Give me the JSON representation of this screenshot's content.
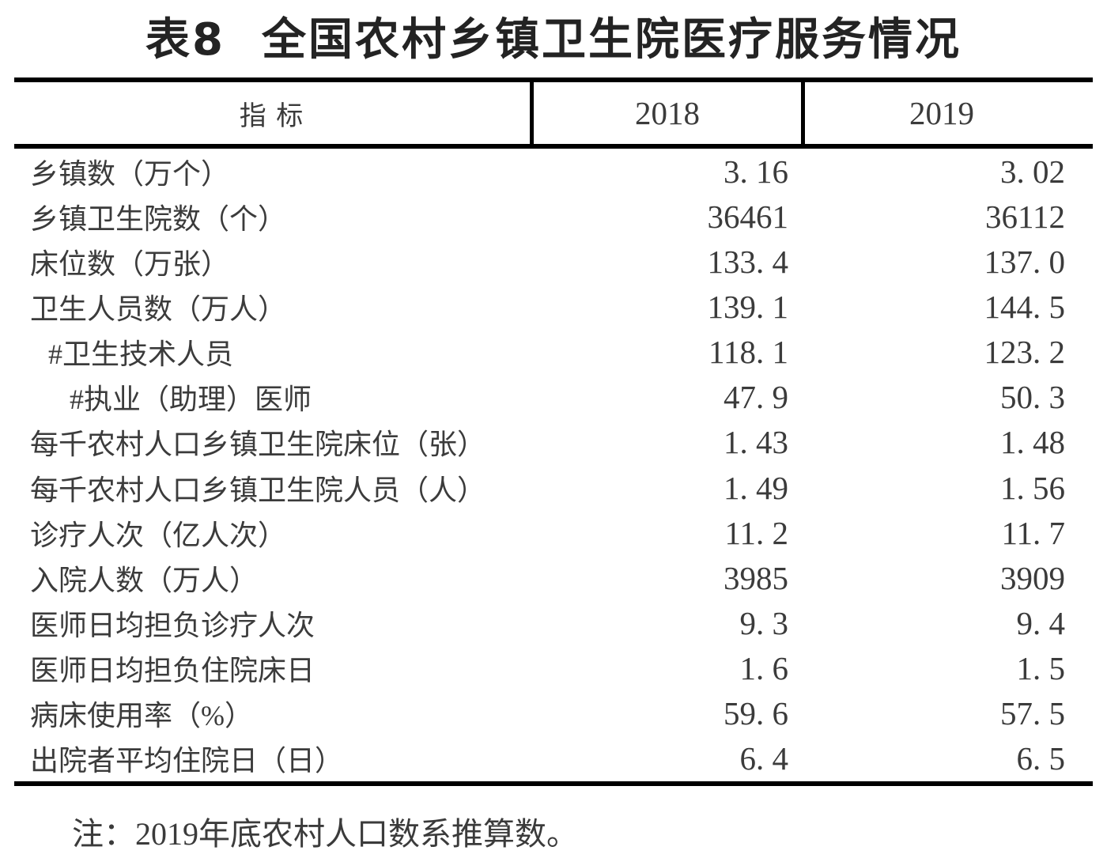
{
  "title": {
    "label": "表8",
    "text": "全国农村乡镇卫生院医疗服务情况"
  },
  "table": {
    "header": {
      "indicator": "指  标",
      "col2018": "2018",
      "col2019": "2019"
    },
    "rows": [
      {
        "label": "乡镇数（万个）",
        "y2018": "3. 16",
        "y2019": "3. 02"
      },
      {
        "label": "乡镇卫生院数（个）",
        "y2018": "36461",
        "y2019": "36112"
      },
      {
        "label": "床位数（万张）",
        "y2018": "133. 4",
        "y2019": "137. 0"
      },
      {
        "label": "卫生人员数（万人）",
        "y2018": "139. 1",
        "y2019": "144. 5"
      },
      {
        "label": "#卫生技术人员",
        "y2018": "118. 1",
        "y2019": "123. 2"
      },
      {
        "label": "#执业（助理）医师",
        "y2018": "47. 9",
        "y2019": "50. 3"
      },
      {
        "label": "每千农村人口乡镇卫生院床位（张）",
        "y2018": "1. 43",
        "y2019": "1. 48"
      },
      {
        "label": "每千农村人口乡镇卫生院人员（人）",
        "y2018": "1. 49",
        "y2019": "1. 56"
      },
      {
        "label": "诊疗人次（亿人次）",
        "y2018": "11. 2",
        "y2019": "11. 7"
      },
      {
        "label": "入院人数（万人）",
        "y2018": "3985",
        "y2019": "3909"
      },
      {
        "label": "医师日均担负诊疗人次",
        "y2018": "9. 3",
        "y2019": "9. 4"
      },
      {
        "label": "医师日均担负住院床日",
        "y2018": "1. 6",
        "y2019": "1. 5"
      },
      {
        "label": "病床使用率（%）",
        "y2018": "59. 6",
        "y2019": "57. 5"
      },
      {
        "label": "出院者平均住院日（日）",
        "y2018": "6. 4",
        "y2019": "6. 5"
      }
    ]
  },
  "note": "注：2019年底农村人口数系推算数。",
  "colors": {
    "rule": "#000000",
    "body_text": "#3b3b3b",
    "title_text": "#232323",
    "background": "#ffffff"
  }
}
